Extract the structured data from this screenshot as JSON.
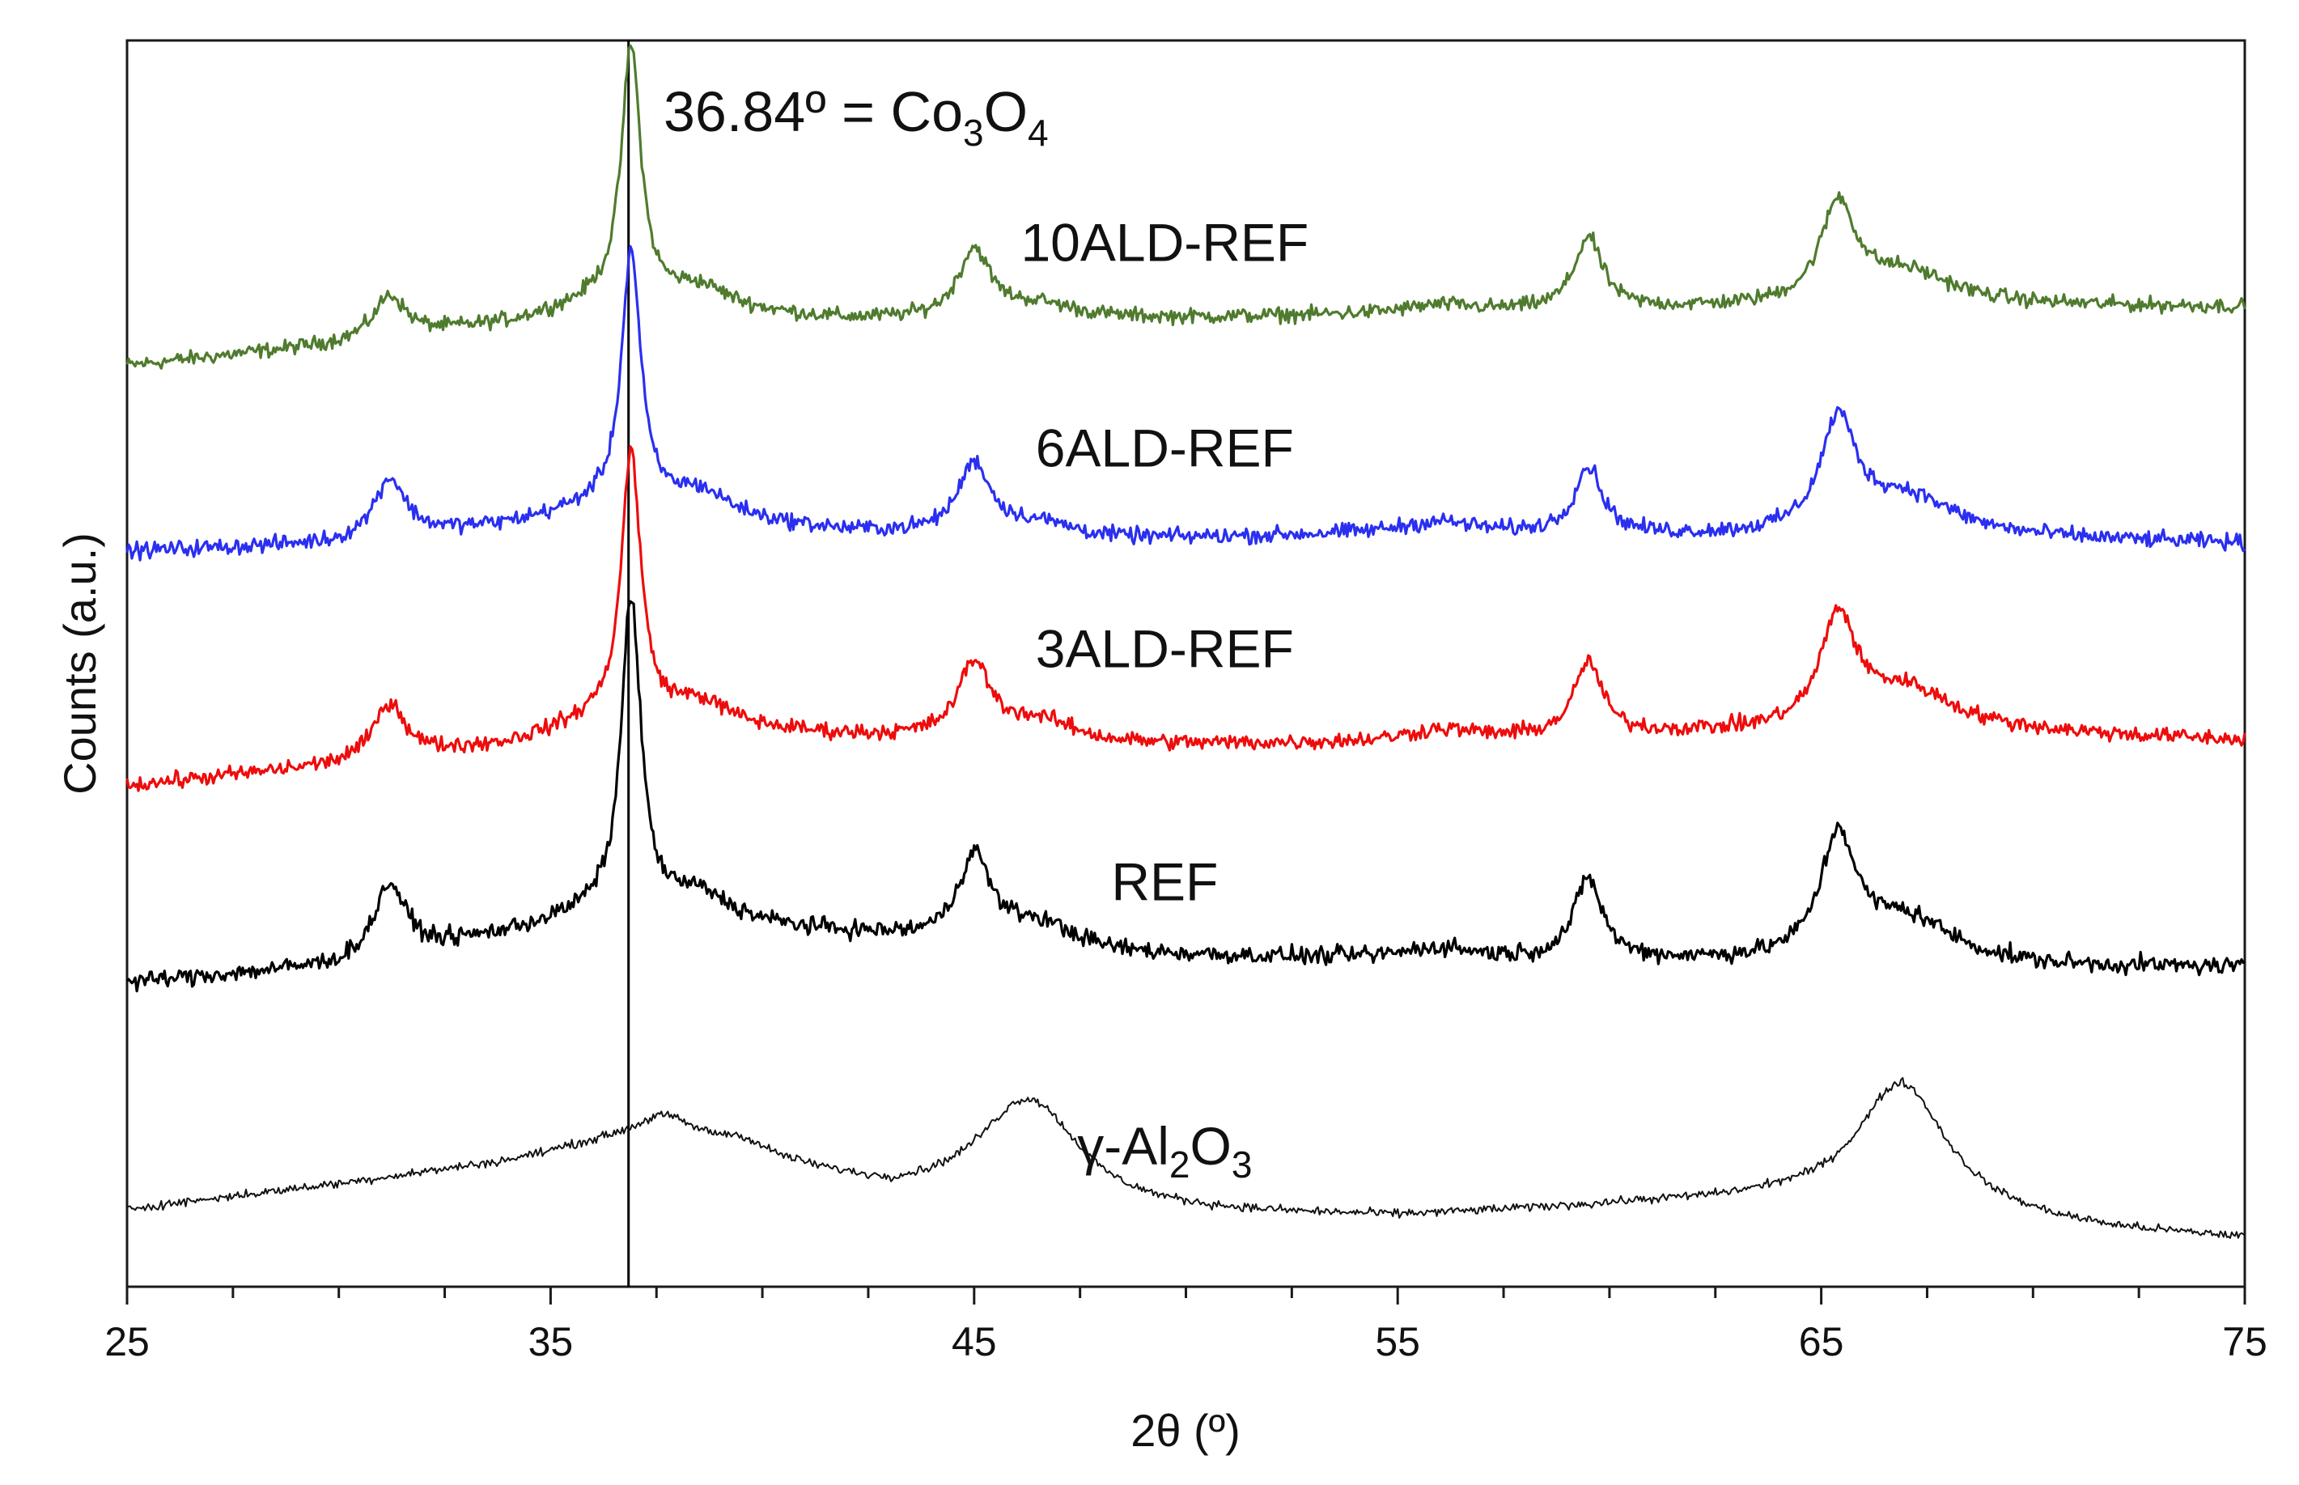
{
  "chart_data": {
    "type": "line",
    "title": "",
    "xlabel": "2θ (º)",
    "ylabel": "Counts (a.u.)",
    "xlim": [
      25,
      75
    ],
    "ylim": [
      0,
      100
    ],
    "yticks_shown": false,
    "grid": false,
    "legend": "none",
    "x_major_ticks": [
      25,
      35,
      45,
      55,
      65,
      75
    ],
    "x_major_tick_labels": [
      "25",
      "35",
      "45",
      "55",
      "65",
      "75"
    ],
    "x_minor_tick_step": 2.5,
    "reference_line": {
      "x": 36.84,
      "label_prefix": "36.84º = Co",
      "label_sub1": "3",
      "label_mid": "O",
      "label_sub2": "4"
    },
    "series": [
      {
        "name": "10ALD-REF",
        "color": "#4f7b2e",
        "label_parts": [
          "10ALD-REF"
        ],
        "label_x": 49.5,
        "label_y": 82.3,
        "baseline_points": [
          [
            25,
            73.9
          ],
          [
            30,
            75.6
          ],
          [
            34,
            77.3
          ],
          [
            36,
            78.8
          ],
          [
            42,
            77.5
          ],
          [
            48,
            77.5
          ],
          [
            55,
            78.0
          ],
          [
            62,
            78.4
          ],
          [
            70,
            78.6
          ],
          [
            75,
            78.6
          ]
        ],
        "peaks": [
          [
            31.2,
            3.4,
            0.45
          ],
          [
            36.9,
            20.6,
            0.28
          ],
          [
            38.5,
            1.8,
            0.9
          ],
          [
            45.0,
            5.4,
            0.45
          ],
          [
            46.5,
            1.2,
            1.2
          ],
          [
            59.5,
            5.8,
            0.4
          ],
          [
            65.4,
            7.8,
            0.5
          ],
          [
            67.0,
            2.7,
            1.4
          ],
          [
            56.0,
            0.6,
            1.0
          ]
        ],
        "noise": 0.42
      },
      {
        "name": "6ALD-REF",
        "color": "#2a2ff0",
        "label_parts": [
          "6ALD-REF"
        ],
        "label_x": 49.5,
        "label_y": 65.8,
        "baseline_points": [
          [
            25,
            59.0
          ],
          [
            30,
            59.6
          ],
          [
            34,
            61.1
          ],
          [
            36,
            62.3
          ],
          [
            42,
            60.5
          ],
          [
            48,
            59.8
          ],
          [
            55,
            60.4
          ],
          [
            62,
            60.1
          ],
          [
            70,
            59.9
          ],
          [
            75,
            59.6
          ]
        ],
        "peaks": [
          [
            31.2,
            4.8,
            0.45
          ],
          [
            36.9,
            20.6,
            0.28
          ],
          [
            38.5,
            2.1,
            0.9
          ],
          [
            45.0,
            5.6,
            0.45
          ],
          [
            46.5,
            1.2,
            1.2
          ],
          [
            59.5,
            5.4,
            0.4
          ],
          [
            65.4,
            8.8,
            0.5
          ],
          [
            67.0,
            3.3,
            1.4
          ],
          [
            56.0,
            0.9,
            1.0
          ]
        ],
        "noise": 0.45
      },
      {
        "name": "3ALD-REF",
        "color": "#ee0c0c",
        "label_parts": [
          "3ALD-REF"
        ],
        "label_x": 49.5,
        "label_y": 49.7,
        "baseline_points": [
          [
            25,
            40.2
          ],
          [
            30,
            41.8
          ],
          [
            34,
            43.5
          ],
          [
            36,
            45.2
          ],
          [
            42,
            44.1
          ],
          [
            48,
            43.3
          ],
          [
            55,
            43.6
          ],
          [
            62,
            44.3
          ],
          [
            70,
            44.3
          ],
          [
            75,
            43.8
          ]
        ],
        "peaks": [
          [
            31.2,
            4.5,
            0.45
          ],
          [
            36.9,
            21.6,
            0.28
          ],
          [
            38.5,
            2.0,
            0.9
          ],
          [
            45.0,
            5.9,
            0.45
          ],
          [
            46.5,
            1.8,
            1.2
          ],
          [
            59.5,
            5.9,
            0.4
          ],
          [
            65.4,
            8.7,
            0.5
          ],
          [
            67.0,
            3.5,
            1.4
          ],
          [
            56.0,
            0.9,
            1.0
          ]
        ],
        "noise": 0.45
      },
      {
        "name": "REF",
        "color": "#000000",
        "label_parts": [
          "REF"
        ],
        "label_x": 49.5,
        "label_y": 31.0,
        "baseline_points": [
          [
            25,
            24.4
          ],
          [
            30,
            25.7
          ],
          [
            34,
            28.3
          ],
          [
            36,
            29.8
          ],
          [
            42,
            28.2
          ],
          [
            48,
            26.5
          ],
          [
            55,
            26.2
          ],
          [
            62,
            26.0
          ],
          [
            70,
            25.5
          ],
          [
            75,
            25.6
          ]
        ],
        "peaks": [
          [
            31.2,
            5.8,
            0.45
          ],
          [
            36.9,
            25.4,
            0.28
          ],
          [
            38.5,
            2.2,
            0.9
          ],
          [
            45.0,
            6.8,
            0.45
          ],
          [
            46.5,
            2.1,
            1.2
          ],
          [
            59.5,
            6.5,
            0.4
          ],
          [
            65.4,
            9.5,
            0.5
          ],
          [
            67.0,
            3.7,
            1.4
          ],
          [
            56.0,
            0.9,
            1.0
          ]
        ],
        "noise": 0.5
      },
      {
        "name": "γ-Al2O3",
        "color": "#111111",
        "label_parts": [
          "γ-Al",
          "2",
          "O",
          "3"
        ],
        "label_x": 49.5,
        "label_y": 9.8,
        "baseline_points": [
          [
            25,
            6.2
          ],
          [
            30,
            8.2
          ],
          [
            34,
            10.0
          ],
          [
            37.5,
            12.6
          ],
          [
            41,
            9.2
          ],
          [
            43,
            7.3
          ],
          [
            48,
            5.7
          ],
          [
            55,
            5.5
          ],
          [
            61,
            6.5
          ],
          [
            64,
            6.7
          ],
          [
            72,
            4.3
          ],
          [
            75,
            3.8
          ]
        ],
        "peaks": [
          [
            46.3,
            8.8,
            1.5
          ],
          [
            66.9,
            10.5,
            1.3
          ],
          [
            37.8,
            1.0,
            0.7
          ],
          [
            39.5,
            0.9,
            0.6
          ]
        ],
        "noise": 0.24
      }
    ]
  }
}
